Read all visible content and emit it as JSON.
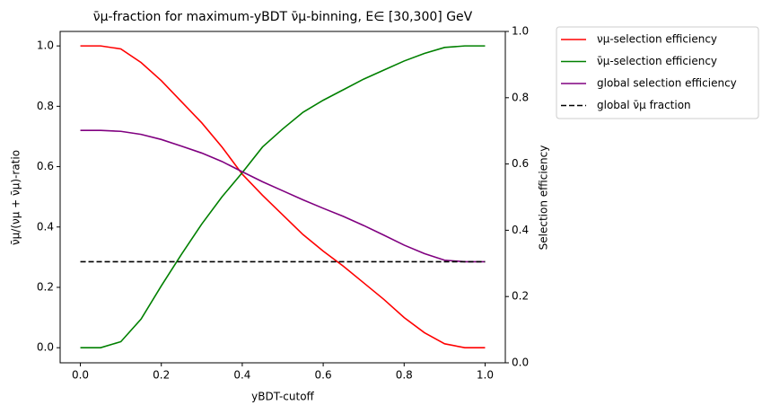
{
  "chart_data": {
    "type": "line",
    "title": "ν̄μ-fraction for maximum-yBDT ν̄μ-binning, E∈ [30,300] GeV",
    "x_label": "yBDT-cutoff",
    "y_label": "ν̄μ/(νμ + ν̄μ)-ratio",
    "y2_label": "Selection efficiency",
    "x": [
      0,
      0.05,
      0.1,
      0.15,
      0.2,
      0.25,
      0.3,
      0.35,
      0.4,
      0.45,
      0.5,
      0.55,
      0.6,
      0.65,
      0.7,
      0.75,
      0.8,
      0.85,
      0.9,
      0.95,
      1.0
    ],
    "xlim": [
      -0.05,
      1.05
    ],
    "xticks": [
      {
        "value": 0,
        "label": "0.0"
      },
      0.2,
      0.4,
      0.6,
      0.8,
      {
        "value": 1,
        "label": "1.0"
      }
    ],
    "ylim": [
      -0.05,
      1.048
    ],
    "yticks": [
      {
        "value": 0,
        "label": "0.0"
      },
      0.2,
      0.4,
      0.6,
      0.8,
      {
        "value": 1,
        "label": "1.0"
      }
    ],
    "y2lim": [
      0,
      1
    ],
    "y2ticks": [
      {
        "value": 0,
        "label": "0.0"
      },
      0.2,
      0.4,
      0.6,
      0.8,
      {
        "value": 1,
        "label": "1.0"
      }
    ],
    "series": [
      {
        "name": "νμ-selection efficiency",
        "color": "#ff0000",
        "linestyle": "solid",
        "values": [
          1.0,
          1.0,
          0.99,
          0.945,
          0.885,
          0.815,
          0.745,
          0.665,
          0.575,
          0.505,
          0.44,
          0.375,
          0.32,
          0.27,
          0.215,
          0.16,
          0.1,
          0.05,
          0.013,
          0.0,
          0.0
        ]
      },
      {
        "name": "ν̄μ-selection efficiency",
        "color": "#008000",
        "linestyle": "solid",
        "values": [
          0.0,
          0.0,
          0.02,
          0.095,
          0.205,
          0.31,
          0.41,
          0.5,
          0.58,
          0.665,
          0.725,
          0.78,
          0.82,
          0.855,
          0.89,
          0.92,
          0.95,
          0.975,
          0.995,
          1.0,
          1.0
        ]
      },
      {
        "name": "global selection efficiency",
        "color": "#800080",
        "linestyle": "solid",
        "values": [
          0.72,
          0.72,
          0.717,
          0.707,
          0.69,
          0.668,
          0.645,
          0.617,
          0.583,
          0.55,
          0.52,
          0.49,
          0.462,
          0.435,
          0.405,
          0.373,
          0.34,
          0.312,
          0.29,
          0.285,
          0.285
        ]
      },
      {
        "name": "global ν̄μ fraction",
        "color": "#000000",
        "linestyle": "dashed",
        "values": [
          0.285,
          0.285,
          0.285,
          0.285,
          0.285,
          0.285,
          0.285,
          0.285,
          0.285,
          0.285,
          0.285,
          0.285,
          0.285,
          0.285,
          0.285,
          0.285,
          0.285,
          0.285,
          0.285,
          0.285,
          0.285
        ]
      }
    ]
  }
}
